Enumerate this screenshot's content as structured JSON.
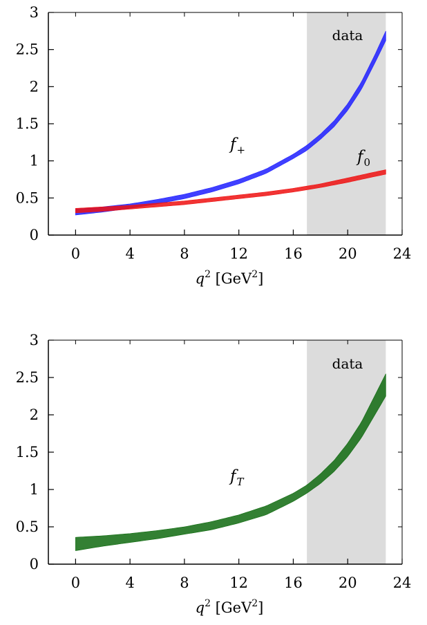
{
  "chart_data": [
    {
      "type": "area",
      "xlabel": "q",
      "xlabel_sup": "2",
      "xlabel_unit_open": " [GeV",
      "xlabel_unit_sup": "2",
      "xlabel_unit_close": "]",
      "ylabel": "",
      "xlim": [
        -2,
        24
      ],
      "ylim": [
        0,
        3
      ],
      "xticks": [
        0,
        4,
        8,
        12,
        16,
        20,
        24
      ],
      "xtick_labels": [
        "0",
        "4",
        "8",
        "12",
        "16",
        "20",
        "24"
      ],
      "yticks": [
        0,
        0.5,
        1,
        1.5,
        2,
        2.5,
        3
      ],
      "ytick_labels": [
        "0",
        "0.5",
        "1",
        "1.5",
        "2",
        "2.5",
        "3"
      ],
      "grid": false,
      "shaded_region": {
        "x": [
          17,
          22.8
        ],
        "label": "data",
        "color": "#dcdcdc"
      },
      "series": [
        {
          "name": "f+",
          "label_main": "f",
          "label_sub": "+",
          "color": "#1f1fff",
          "x": [
            0,
            2,
            4,
            6,
            8,
            10,
            12,
            14,
            16,
            17,
            18,
            19,
            20,
            21,
            22,
            22.8
          ],
          "lower": [
            0.27,
            0.31,
            0.36,
            0.42,
            0.49,
            0.58,
            0.69,
            0.83,
            1.03,
            1.14,
            1.29,
            1.46,
            1.68,
            1.96,
            2.32,
            2.62
          ],
          "upper": [
            0.35,
            0.38,
            0.42,
            0.48,
            0.55,
            0.64,
            0.75,
            0.89,
            1.09,
            1.21,
            1.36,
            1.54,
            1.77,
            2.06,
            2.43,
            2.75
          ]
        },
        {
          "name": "f0",
          "label_main": "f",
          "label_sub": "0",
          "color": "#ee1111",
          "x": [
            0,
            2,
            4,
            6,
            8,
            10,
            12,
            14,
            16,
            18,
            20,
            22,
            22.8
          ],
          "lower": [
            0.3,
            0.32,
            0.35,
            0.38,
            0.41,
            0.45,
            0.49,
            0.53,
            0.58,
            0.64,
            0.71,
            0.79,
            0.82
          ],
          "upper": [
            0.36,
            0.38,
            0.4,
            0.43,
            0.46,
            0.5,
            0.54,
            0.58,
            0.63,
            0.69,
            0.77,
            0.85,
            0.88
          ]
        }
      ]
    },
    {
      "type": "area",
      "xlabel": "q",
      "xlabel_sup": "2",
      "xlabel_unit_open": " [GeV",
      "xlabel_unit_sup": "2",
      "xlabel_unit_close": "]",
      "ylabel": "",
      "xlim": [
        -2,
        24
      ],
      "ylim": [
        0,
        3
      ],
      "xticks": [
        0,
        4,
        8,
        12,
        16,
        20,
        24
      ],
      "xtick_labels": [
        "0",
        "4",
        "8",
        "12",
        "16",
        "20",
        "24"
      ],
      "yticks": [
        0,
        0.5,
        1,
        1.5,
        2,
        2.5,
        3
      ],
      "ytick_labels": [
        "0",
        "0.5",
        "1",
        "1.5",
        "2",
        "2.5",
        "3"
      ],
      "grid": false,
      "shaded_region": {
        "x": [
          17,
          22.8
        ],
        "label": "data",
        "color": "#dcdcdc"
      },
      "series": [
        {
          "name": "fT",
          "label_main": "f",
          "label_sub": "T",
          "color": "#0f6a0f",
          "x": [
            0,
            2,
            4,
            6,
            8,
            10,
            12,
            14,
            16,
            17,
            18,
            19,
            20,
            21,
            22,
            22.8
          ],
          "lower": [
            0.18,
            0.24,
            0.29,
            0.34,
            0.4,
            0.46,
            0.55,
            0.66,
            0.84,
            0.95,
            1.08,
            1.24,
            1.44,
            1.69,
            2.0,
            2.25
          ],
          "upper": [
            0.36,
            0.38,
            0.41,
            0.45,
            0.5,
            0.57,
            0.66,
            0.78,
            0.95,
            1.06,
            1.21,
            1.39,
            1.62,
            1.9,
            2.26,
            2.55
          ]
        }
      ]
    }
  ]
}
